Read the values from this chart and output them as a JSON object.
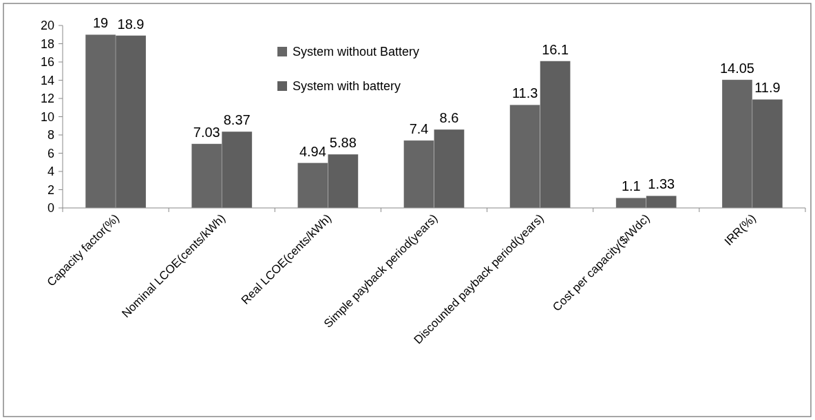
{
  "chart_data": {
    "type": "bar",
    "categories": [
      "Capacity factor(%)",
      "Nominal LCOE(cents/kWh)",
      "Real LCOE(cents/kWh)",
      "Simple payback period(years)",
      "Discounted payback period(years)",
      "Cost per capacity($/Wdc)",
      "IRR(%)"
    ],
    "series": [
      {
        "name": "System without Battery",
        "color": "#666666",
        "values": [
          19,
          7.03,
          4.94,
          7.4,
          11.3,
          1.1,
          14.05
        ]
      },
      {
        "name": "System with battery",
        "color": "#5f5f5f",
        "values": [
          18.9,
          8.37,
          5.88,
          8.6,
          16.1,
          1.33,
          11.9
        ]
      }
    ],
    "ylim": [
      0,
      20
    ],
    "yticks": [
      0,
      2,
      4,
      6,
      8,
      10,
      12,
      14,
      16,
      18,
      20
    ],
    "grid": false,
    "legend": "top",
    "data_labels": true
  }
}
